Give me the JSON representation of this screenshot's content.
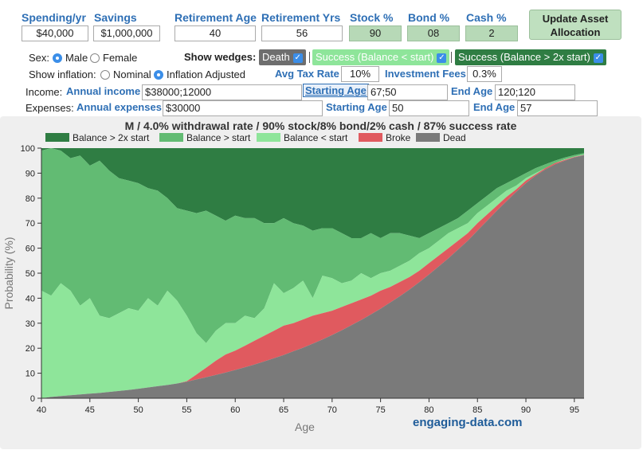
{
  "top_fields": {
    "spending": {
      "label": "Spending/yr",
      "value": "$40,000"
    },
    "savings": {
      "label": "Savings",
      "value": "$1,000,000"
    },
    "retirement_age": {
      "label": "Retirement Age",
      "value": "40"
    },
    "retirement_yrs": {
      "label": "Retirement Yrs",
      "value": "56"
    },
    "stock": {
      "label": "Stock %",
      "value": "90"
    },
    "bond": {
      "label": "Bond %",
      "value": "08"
    },
    "cash": {
      "label": "Cash %",
      "value": "2"
    },
    "update_button": {
      "line1": "Update Asset",
      "line2": "Allocation"
    }
  },
  "sex": {
    "label": "Sex:",
    "male": "Male",
    "female": "Female",
    "selected": "Male"
  },
  "inflation": {
    "label": "Show inflation:",
    "nominal": "Nominal",
    "adjusted": "Inflation Adjusted",
    "selected": "Inflation Adjusted"
  },
  "wedges": {
    "label": "Show wedges:",
    "death": "Death",
    "success_below": "Success (Balance < start)",
    "success_above": "Success (Balance > 2x start)"
  },
  "tax": {
    "label": "Avg Tax Rate",
    "value": "10%"
  },
  "fees": {
    "label": "Investment Fees",
    "value": "0.3%"
  },
  "income": {
    "label": "Income:",
    "field_label": "Annual income",
    "value": "$38000;12000",
    "start_label": "Starting Age",
    "start_value": "67;50",
    "end_label": "End Age",
    "end_value": "120;120"
  },
  "expenses": {
    "label": "Expenses:",
    "field_label": "Annual expenses",
    "value": "$30000",
    "start_label": "Starting Age",
    "start_value": "50",
    "end_label": "End Age",
    "end_value": "57"
  },
  "credit": "engaging-data.com",
  "colors": {
    "dead": "#7a7a7a",
    "broke": "#e05a5f",
    "below_start": "#8ee59a",
    "above_start": "#62bb73",
    "above_2x": "#2f7d43",
    "blue": "#2e6fb5"
  },
  "chart_data": {
    "type": "area",
    "stacked": true,
    "title": "M / 4.0% withdrawal rate / 90% stock/8% bond/2% cash / 87% success rate",
    "xlabel": "Age",
    "ylabel": "Probability (%)",
    "xlim": [
      40,
      96
    ],
    "ylim": [
      0,
      100
    ],
    "x_ticks": [
      40,
      45,
      50,
      55,
      60,
      65,
      70,
      75,
      80,
      85,
      90,
      95
    ],
    "y_ticks": [
      0,
      10,
      20,
      30,
      40,
      50,
      60,
      70,
      80,
      90,
      100
    ],
    "legend_position": "top",
    "x": [
      40,
      41,
      42,
      43,
      44,
      45,
      46,
      47,
      48,
      49,
      50,
      51,
      52,
      53,
      54,
      55,
      56,
      57,
      58,
      59,
      60,
      61,
      62,
      63,
      64,
      65,
      66,
      67,
      68,
      69,
      70,
      71,
      72,
      73,
      74,
      75,
      76,
      77,
      78,
      79,
      80,
      81,
      82,
      83,
      84,
      85,
      86,
      87,
      88,
      89,
      90,
      91,
      92,
      93,
      94,
      95,
      96
    ],
    "series": [
      {
        "name": "Dead",
        "key": "dead",
        "cumulative": [
          0,
          0.5,
          0.9,
          1.2,
          1.5,
          1.8,
          2.1,
          2.5,
          2.9,
          3.3,
          3.8,
          4.3,
          4.8,
          5.3,
          5.9,
          6.6,
          7.5,
          8.4,
          9.3,
          10.3,
          11.3,
          12.4,
          13.5,
          14.7,
          16.0,
          17.3,
          18.8,
          20.2,
          21.8,
          23.5,
          25.3,
          27.2,
          29.2,
          31.3,
          33.5,
          35.8,
          38.3,
          40.8,
          43.5,
          46.4,
          49.5,
          52.7,
          56.0,
          59.5,
          63.0,
          67.0,
          71.0,
          75.0,
          78.8,
          82.5,
          86.0,
          89.0,
          91.5,
          93.5,
          95.0,
          96.3,
          97.2
        ]
      },
      {
        "name": "Broke",
        "key": "broke",
        "cumulative": [
          0,
          0.5,
          0.9,
          1.2,
          1.5,
          1.8,
          2.1,
          2.5,
          2.9,
          3.3,
          3.8,
          4.3,
          4.8,
          5.3,
          5.9,
          6.8,
          9.5,
          12.2,
          15.0,
          17.5,
          19.0,
          21.0,
          23.0,
          25.0,
          27.0,
          29.0,
          30.0,
          31.5,
          33.0,
          34.0,
          35.0,
          36.5,
          38.0,
          39.5,
          41.0,
          43.0,
          44.5,
          46.5,
          48.5,
          51.0,
          54.0,
          57.0,
          60.0,
          63.0,
          66.0,
          70.0,
          73.5,
          77.0,
          80.5,
          83.5,
          87.0,
          89.5,
          92.0,
          94.0,
          95.3,
          96.5,
          97.3
        ]
      },
      {
        "name": "Balance < start",
        "key": "below_start",
        "cumulative": [
          43,
          41,
          46,
          43,
          37,
          40,
          33,
          32,
          34,
          36,
          35,
          40,
          37,
          43,
          39,
          33,
          26,
          22,
          27,
          30,
          30,
          33,
          32,
          36,
          46,
          42,
          44,
          47,
          40,
          49,
          48,
          46,
          47,
          50,
          48,
          50,
          51,
          53,
          55,
          58,
          60,
          63,
          66,
          68,
          70,
          74,
          77,
          80,
          83,
          85,
          88,
          90,
          92,
          94,
          95.5,
          96.6,
          97.5
        ]
      },
      {
        "name": "Balance > start",
        "key": "above_start",
        "cumulative": [
          99,
          100,
          99,
          96,
          97,
          93,
          95,
          91,
          88,
          87,
          86,
          84,
          83,
          80,
          76,
          75,
          74,
          75,
          73,
          71,
          73,
          72,
          72,
          70,
          70,
          72,
          70,
          69,
          67,
          68,
          68,
          66,
          64,
          64,
          66,
          64,
          66,
          66,
          65,
          64,
          66,
          68,
          70,
          72,
          75,
          78,
          81,
          84,
          86,
          88,
          90,
          92,
          93.5,
          95,
          96.2,
          97.2,
          98
        ]
      },
      {
        "name": "Balance > 2x start",
        "key": "above_2x",
        "cumulative": [
          100,
          100,
          100,
          100,
          100,
          100,
          100,
          100,
          100,
          100,
          100,
          100,
          100,
          100,
          100,
          100,
          100,
          100,
          100,
          100,
          100,
          100,
          100,
          100,
          100,
          100,
          100,
          100,
          100,
          100,
          100,
          100,
          100,
          100,
          100,
          100,
          100,
          100,
          100,
          100,
          100,
          100,
          100,
          100,
          100,
          100,
          100,
          100,
          100,
          100,
          100,
          100,
          100,
          100,
          100,
          100,
          100
        ]
      }
    ],
    "legend_order": [
      "above_2x",
      "above_start",
      "below_start",
      "broke",
      "dead"
    ]
  }
}
